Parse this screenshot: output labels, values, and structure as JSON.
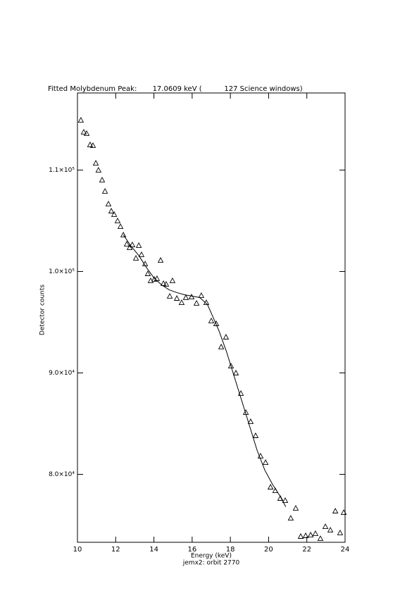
{
  "chart_data": {
    "type": "scatter",
    "title": "Fitted Molybdenum Peak:       17.0609 keV (          127 Science windows)",
    "x_label": "Energy (keV)",
    "subtitle": "jemx2: orbit 2770",
    "y_label": "Detector counts",
    "xlim": [
      10,
      24
    ],
    "xticks": [
      10,
      12,
      14,
      16,
      18,
      20,
      22,
      24
    ],
    "ylim": [
      73300,
      117600
    ],
    "yticks": [
      {
        "value": 80000,
        "label": "8.0×10⁴"
      },
      {
        "value": 90000,
        "label": "9.0×10⁴"
      },
      {
        "value": 100000,
        "label": "1.0×10⁵"
      },
      {
        "value": 110000,
        "label": "1.1×10⁵"
      }
    ],
    "series": [
      {
        "type": "scatter",
        "marker": "triangle",
        "color": "#000000",
        "x": [
          10.18,
          10.33,
          10.48,
          10.66,
          10.81,
          10.96,
          11.1,
          11.29,
          11.44,
          11.62,
          11.77,
          11.92,
          12.1,
          12.25,
          12.4,
          12.58,
          12.73,
          12.87,
          13.06,
          13.21,
          13.35,
          13.54,
          13.68,
          13.83,
          14.02,
          14.16,
          14.35,
          14.5,
          14.64,
          14.83,
          14.97,
          15.2,
          15.45,
          15.67,
          15.97,
          16.23,
          16.48,
          16.74,
          17.0,
          17.26,
          17.52,
          17.77,
          18.03,
          18.29,
          18.55,
          18.81,
          19.06,
          19.32,
          19.58,
          19.84,
          20.1,
          20.35,
          20.61,
          20.87,
          21.16,
          21.42,
          21.68,
          21.94,
          22.2,
          22.45,
          22.71,
          22.97,
          23.23,
          23.49,
          23.74,
          23.93
        ],
        "values": [
          114930,
          113750,
          113610,
          112500,
          112430,
          110690,
          110000,
          109030,
          107920,
          106670,
          105970,
          105630,
          105000,
          104440,
          103610,
          102710,
          102360,
          102640,
          101320,
          102570,
          101670,
          100760,
          99790,
          99100,
          99240,
          99310,
          101110,
          98820,
          98750,
          97570,
          99100,
          97360,
          96940,
          97430,
          97500,
          96880,
          97640,
          96940,
          95140,
          94860,
          92570,
          93540,
          90690,
          90000,
          87990,
          86110,
          85210,
          83820,
          81810,
          81180,
          78750,
          78400,
          77640,
          77430,
          75690,
          76670,
          73890,
          73960,
          74030,
          74170,
          73680,
          74860,
          74510,
          76390,
          74240,
          76250
        ]
      },
      {
        "type": "line",
        "color": "#000000",
        "x": [
          12.4,
          12.8,
          13.2,
          13.6,
          14.0,
          14.4,
          14.8,
          15.2,
          15.6,
          16.0,
          16.4,
          16.8,
          17.0,
          17.4,
          17.8,
          18.2,
          18.6,
          19.0,
          19.4,
          19.8,
          20.2,
          20.6,
          20.9
        ],
        "values": [
          103610,
          102500,
          101600,
          100420,
          99370,
          98680,
          98190,
          97920,
          97710,
          97570,
          97430,
          96740,
          95900,
          94170,
          92080,
          89650,
          87220,
          84790,
          82360,
          80420,
          79030,
          77850,
          76800
        ]
      }
    ]
  }
}
